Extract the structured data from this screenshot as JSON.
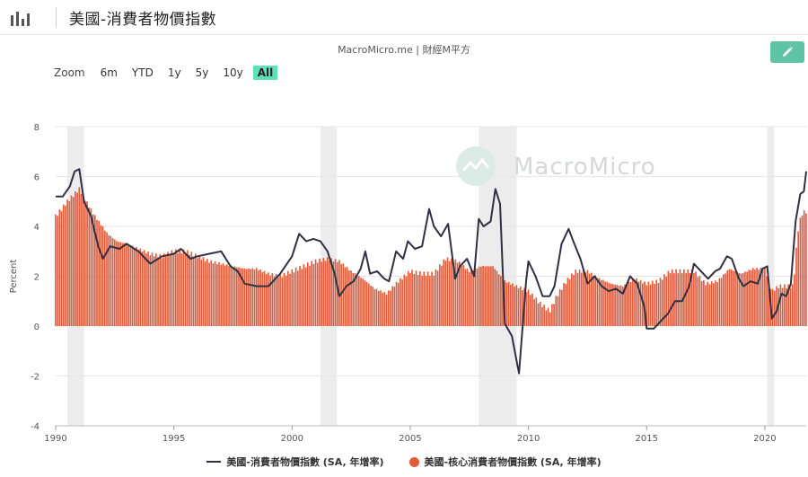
{
  "header": {
    "title": "美國-消費者物價指數",
    "icon": "bar-chart-icon"
  },
  "source": "MacroMicro.me | 財經M平方",
  "watermark": "MacroMicro",
  "edit_button": {
    "icon": "pencil-icon"
  },
  "zoom": {
    "label": "Zoom",
    "options": [
      "6m",
      "YTD",
      "1y",
      "5y",
      "10y",
      "All"
    ],
    "selected": "All"
  },
  "colors": {
    "line": "#2f3142",
    "bars": "#e25a3a",
    "recession": "#ececec",
    "accent": "#5fc3a5"
  },
  "legend": [
    {
      "label": "美國-消費者物價指數 (SA, 年增率)",
      "type": "line"
    },
    {
      "label": "美國-核心消費者物價指數 (SA, 年增率)",
      "type": "bar"
    }
  ],
  "chart_data": {
    "type": "bar+line",
    "ylabel": "Percent",
    "ylim": [
      -4,
      8
    ],
    "yticks": [
      "-4",
      "-2",
      "0",
      "2",
      "4",
      "6",
      "8"
    ],
    "xlim": [
      1990,
      2021.75
    ],
    "xticks": [
      "1990",
      "1995",
      "2000",
      "2005",
      "2010",
      "2015",
      "2020"
    ],
    "recessions": [
      [
        1990.5,
        1991.2
      ],
      [
        2001.2,
        2001.9
      ],
      [
        2007.9,
        2009.5
      ],
      [
        2020.1,
        2020.4
      ]
    ],
    "series": [
      {
        "name": "美國-消費者物價指數 (SA, 年增率)",
        "type": "line",
        "points": [
          [
            1990.0,
            5.2
          ],
          [
            1990.3,
            5.2
          ],
          [
            1990.6,
            5.6
          ],
          [
            1990.8,
            6.2
          ],
          [
            1991.0,
            6.3
          ],
          [
            1991.2,
            5.0
          ],
          [
            1991.5,
            4.4
          ],
          [
            1991.8,
            3.2
          ],
          [
            1992.0,
            2.7
          ],
          [
            1992.3,
            3.2
          ],
          [
            1992.7,
            3.1
          ],
          [
            1993.0,
            3.3
          ],
          [
            1993.5,
            3.0
          ],
          [
            1994.0,
            2.5
          ],
          [
            1994.5,
            2.8
          ],
          [
            1995.0,
            2.9
          ],
          [
            1995.3,
            3.1
          ],
          [
            1995.7,
            2.7
          ],
          [
            1996.0,
            2.8
          ],
          [
            1996.5,
            2.9
          ],
          [
            1997.0,
            3.0
          ],
          [
            1997.4,
            2.4
          ],
          [
            1997.7,
            2.2
          ],
          [
            1998.0,
            1.7
          ],
          [
            1998.5,
            1.6
          ],
          [
            1999.0,
            1.6
          ],
          [
            1999.5,
            2.1
          ],
          [
            2000.0,
            2.8
          ],
          [
            2000.3,
            3.7
          ],
          [
            2000.6,
            3.4
          ],
          [
            2000.9,
            3.5
          ],
          [
            2001.2,
            3.4
          ],
          [
            2001.5,
            3.0
          ],
          [
            2001.8,
            2.1
          ],
          [
            2002.0,
            1.2
          ],
          [
            2002.3,
            1.6
          ],
          [
            2002.6,
            1.8
          ],
          [
            2002.9,
            2.3
          ],
          [
            2003.1,
            3.0
          ],
          [
            2003.3,
            2.1
          ],
          [
            2003.6,
            2.2
          ],
          [
            2003.9,
            1.9
          ],
          [
            2004.1,
            1.8
          ],
          [
            2004.4,
            3.0
          ],
          [
            2004.7,
            2.7
          ],
          [
            2004.9,
            3.4
          ],
          [
            2005.2,
            3.1
          ],
          [
            2005.5,
            3.2
          ],
          [
            2005.8,
            4.7
          ],
          [
            2006.0,
            4.0
          ],
          [
            2006.3,
            3.6
          ],
          [
            2006.6,
            4.1
          ],
          [
            2006.9,
            1.9
          ],
          [
            2007.1,
            2.4
          ],
          [
            2007.4,
            2.7
          ],
          [
            2007.7,
            2.0
          ],
          [
            2007.9,
            4.3
          ],
          [
            2008.1,
            4.0
          ],
          [
            2008.4,
            4.2
          ],
          [
            2008.6,
            5.5
          ],
          [
            2008.8,
            4.9
          ],
          [
            2009.0,
            0.1
          ],
          [
            2009.3,
            -0.4
          ],
          [
            2009.6,
            -1.9
          ],
          [
            2009.9,
            1.8
          ],
          [
            2010.0,
            2.6
          ],
          [
            2010.3,
            2.0
          ],
          [
            2010.6,
            1.2
          ],
          [
            2010.9,
            1.2
          ],
          [
            2011.1,
            1.6
          ],
          [
            2011.4,
            3.3
          ],
          [
            2011.7,
            3.9
          ],
          [
            2011.9,
            3.4
          ],
          [
            2012.2,
            2.7
          ],
          [
            2012.5,
            1.7
          ],
          [
            2012.8,
            2.0
          ],
          [
            2013.1,
            1.6
          ],
          [
            2013.4,
            1.4
          ],
          [
            2013.7,
            1.5
          ],
          [
            2014.0,
            1.3
          ],
          [
            2014.3,
            2.0
          ],
          [
            2014.6,
            1.7
          ],
          [
            2014.9,
            0.8
          ],
          [
            2015.0,
            -0.1
          ],
          [
            2015.3,
            -0.1
          ],
          [
            2015.6,
            0.2
          ],
          [
            2015.9,
            0.5
          ],
          [
            2016.2,
            1.0
          ],
          [
            2016.5,
            1.0
          ],
          [
            2016.8,
            1.6
          ],
          [
            2017.0,
            2.5
          ],
          [
            2017.3,
            2.2
          ],
          [
            2017.6,
            1.9
          ],
          [
            2017.9,
            2.2
          ],
          [
            2018.1,
            2.3
          ],
          [
            2018.4,
            2.8
          ],
          [
            2018.6,
            2.7
          ],
          [
            2018.9,
            1.9
          ],
          [
            2019.1,
            1.6
          ],
          [
            2019.4,
            1.8
          ],
          [
            2019.7,
            1.7
          ],
          [
            2019.9,
            2.3
          ],
          [
            2020.1,
            2.4
          ],
          [
            2020.3,
            0.3
          ],
          [
            2020.5,
            0.6
          ],
          [
            2020.7,
            1.3
          ],
          [
            2020.9,
            1.2
          ],
          [
            2021.1,
            1.7
          ],
          [
            2021.3,
            4.2
          ],
          [
            2021.5,
            5.3
          ],
          [
            2021.65,
            5.4
          ],
          [
            2021.75,
            6.2
          ]
        ]
      },
      {
        "name": "美國-核心消費者物價指數 (SA, 年增率)",
        "type": "bar",
        "points": [
          [
            1990.0,
            4.4
          ],
          [
            1990.5,
            5.0
          ],
          [
            1991.0,
            5.5
          ],
          [
            1991.3,
            5.0
          ],
          [
            1991.6,
            4.5
          ],
          [
            1991.9,
            4.1
          ],
          [
            1992.2,
            3.7
          ],
          [
            1992.6,
            3.4
          ],
          [
            1993.0,
            3.3
          ],
          [
            1993.5,
            3.1
          ],
          [
            1994.0,
            2.9
          ],
          [
            1994.5,
            2.8
          ],
          [
            1995.0,
            3.0
          ],
          [
            1995.5,
            3.0
          ],
          [
            1996.0,
            2.8
          ],
          [
            1996.5,
            2.6
          ],
          [
            1997.0,
            2.5
          ],
          [
            1997.5,
            2.4
          ],
          [
            1998.0,
            2.3
          ],
          [
            1998.5,
            2.3
          ],
          [
            1999.0,
            2.1
          ],
          [
            1999.5,
            2.0
          ],
          [
            2000.0,
            2.2
          ],
          [
            2000.5,
            2.4
          ],
          [
            2001.0,
            2.6
          ],
          [
            2001.5,
            2.7
          ],
          [
            2002.0,
            2.6
          ],
          [
            2002.5,
            2.2
          ],
          [
            2003.0,
            1.9
          ],
          [
            2003.5,
            1.5
          ],
          [
            2004.0,
            1.3
          ],
          [
            2004.5,
            1.8
          ],
          [
            2005.0,
            2.2
          ],
          [
            2005.5,
            2.1
          ],
          [
            2006.0,
            2.1
          ],
          [
            2006.5,
            2.7
          ],
          [
            2007.0,
            2.6
          ],
          [
            2007.5,
            2.2
          ],
          [
            2008.0,
            2.4
          ],
          [
            2008.5,
            2.4
          ],
          [
            2009.0,
            1.8
          ],
          [
            2009.5,
            1.6
          ],
          [
            2010.0,
            1.4
          ],
          [
            2010.5,
            0.9
          ],
          [
            2010.9,
            0.6
          ],
          [
            2011.2,
            1.2
          ],
          [
            2011.6,
            1.8
          ],
          [
            2012.0,
            2.2
          ],
          [
            2012.5,
            2.2
          ],
          [
            2013.0,
            1.9
          ],
          [
            2013.5,
            1.7
          ],
          [
            2014.0,
            1.6
          ],
          [
            2014.5,
            1.9
          ],
          [
            2015.0,
            1.7
          ],
          [
            2015.5,
            1.8
          ],
          [
            2016.0,
            2.2
          ],
          [
            2016.5,
            2.2
          ],
          [
            2017.0,
            2.2
          ],
          [
            2017.5,
            1.7
          ],
          [
            2018.0,
            1.8
          ],
          [
            2018.5,
            2.3
          ],
          [
            2019.0,
            2.1
          ],
          [
            2019.5,
            2.3
          ],
          [
            2020.0,
            2.3
          ],
          [
            2020.3,
            1.4
          ],
          [
            2020.6,
            1.6
          ],
          [
            2020.9,
            1.6
          ],
          [
            2021.2,
            1.6
          ],
          [
            2021.4,
            3.8
          ],
          [
            2021.55,
            4.5
          ],
          [
            2021.75,
            4.6
          ]
        ]
      }
    ]
  }
}
